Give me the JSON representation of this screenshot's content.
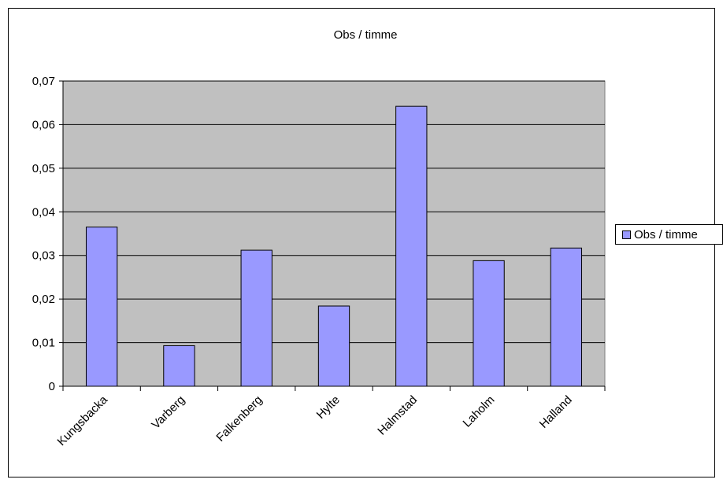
{
  "chart_data": {
    "type": "bar",
    "title": "Obs / timme",
    "categories": [
      "Kungsbacka",
      "Varberg",
      "Falkenberg",
      "Hylte",
      "Halmstad",
      "Laholm",
      "Halland"
    ],
    "series": [
      {
        "name": "Obs / timme",
        "values": [
          0.0365,
          0.0093,
          0.0312,
          0.0184,
          0.0642,
          0.0288,
          0.0317
        ],
        "color": "#9999ff"
      }
    ],
    "y_ticks": [
      "0",
      "0,01",
      "0,02",
      "0,03",
      "0,04",
      "0,05",
      "0,06",
      "0,07"
    ],
    "ylim": [
      0,
      0.07
    ],
    "grid": true,
    "plot_background": "#c0c0c0",
    "legend_position": "right"
  }
}
